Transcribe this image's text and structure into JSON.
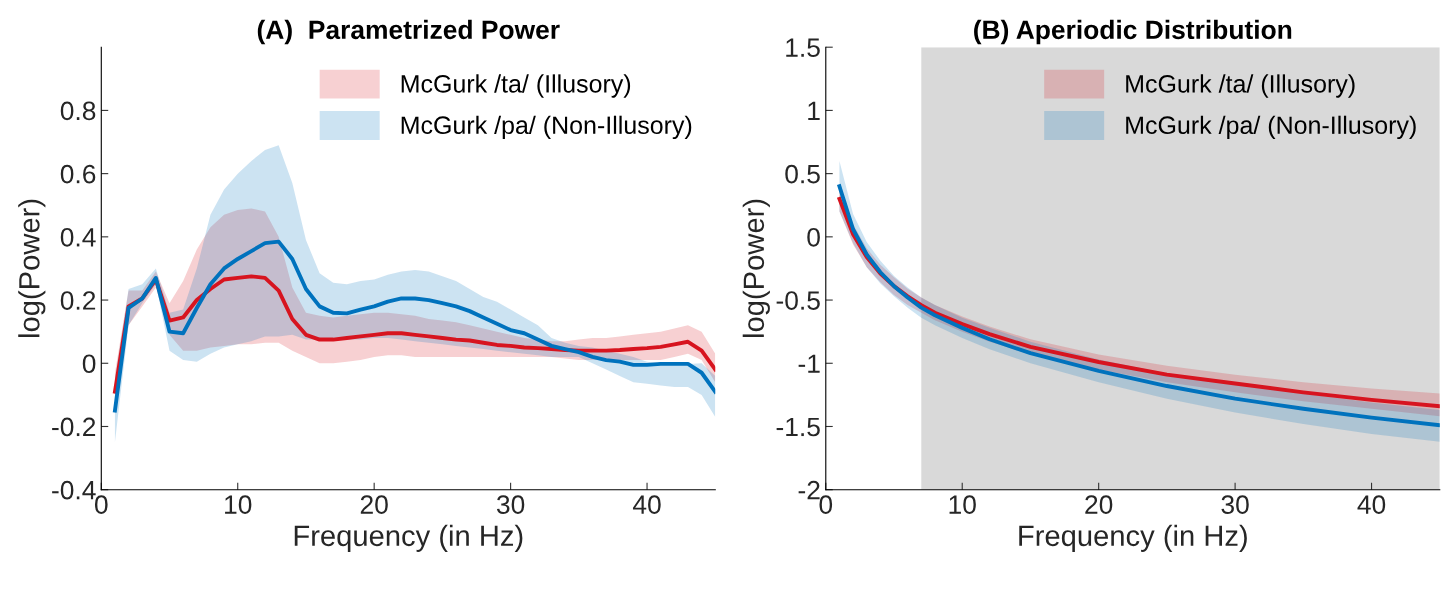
{
  "chart_data": [
    {
      "type": "line",
      "title": "(A)  Parametrized Power",
      "xlabel": "Frequency (in Hz)",
      "ylabel": "log(Power)",
      "x": [
        1,
        2,
        3,
        4,
        5,
        6,
        7,
        8,
        9,
        10,
        11,
        12,
        13,
        14,
        15,
        16,
        17,
        18,
        19,
        20,
        21,
        22,
        23,
        24,
        25,
        26,
        27,
        28,
        29,
        30,
        31,
        32,
        33,
        34,
        35,
        36,
        37,
        38,
        39,
        40,
        41,
        42,
        43,
        44,
        45
      ],
      "xlim": [
        0,
        45
      ],
      "xticks": [
        0,
        10,
        20,
        30,
        40
      ],
      "ylim": [
        -0.4,
        1.0
      ],
      "yticks": [
        -0.4,
        -0.2,
        0,
        0.2,
        0.4,
        0.6,
        0.8
      ],
      "grid": false,
      "legend": "top right",
      "series": [
        {
          "name": "McGurk /ta/ (Illusory)",
          "color": "#d7141f",
          "values": [
            -0.09,
            0.18,
            0.205,
            0.265,
            0.135,
            0.145,
            0.2,
            0.235,
            0.265,
            0.27,
            0.275,
            0.27,
            0.23,
            0.14,
            0.09,
            0.075,
            0.075,
            0.08,
            0.085,
            0.09,
            0.095,
            0.095,
            0.09,
            0.085,
            0.08,
            0.075,
            0.072,
            0.065,
            0.058,
            0.055,
            0.05,
            0.048,
            0.045,
            0.042,
            0.04,
            0.04,
            0.04,
            0.042,
            0.045,
            0.048,
            0.052,
            0.06,
            0.068,
            0.04,
            -0.02
          ],
          "lower": [
            -0.15,
            0.12,
            0.18,
            0.24,
            0.09,
            0.04,
            0.04,
            0.05,
            0.055,
            0.06,
            0.06,
            0.065,
            0.065,
            0.04,
            0.02,
            0.0,
            0.0,
            0.005,
            0.01,
            0.02,
            0.025,
            0.025,
            0.02,
            0.02,
            0.02,
            0.02,
            0.02,
            0.02,
            0.02,
            0.02,
            0.02,
            0.02,
            0.02,
            0.015,
            0.01,
            0.01,
            0.01,
            0.01,
            0.01,
            0.01,
            0.01,
            0.02,
            0.03,
            0.01,
            -0.06
          ],
          "upper": [
            -0.03,
            0.23,
            0.23,
            0.29,
            0.19,
            0.26,
            0.36,
            0.43,
            0.47,
            0.485,
            0.49,
            0.48,
            0.4,
            0.24,
            0.16,
            0.15,
            0.145,
            0.15,
            0.155,
            0.16,
            0.16,
            0.155,
            0.15,
            0.14,
            0.135,
            0.13,
            0.12,
            0.11,
            0.1,
            0.09,
            0.08,
            0.075,
            0.07,
            0.07,
            0.075,
            0.08,
            0.08,
            0.085,
            0.09,
            0.095,
            0.1,
            0.11,
            0.12,
            0.1,
            0.03
          ]
        },
        {
          "name": "McGurk /pa/ (Non-Illusory)",
          "color": "#0072bd",
          "values": [
            -0.15,
            0.175,
            0.205,
            0.27,
            0.1,
            0.095,
            0.175,
            0.25,
            0.3,
            0.33,
            0.355,
            0.38,
            0.385,
            0.33,
            0.235,
            0.18,
            0.16,
            0.158,
            0.17,
            0.18,
            0.195,
            0.205,
            0.205,
            0.2,
            0.19,
            0.18,
            0.165,
            0.145,
            0.125,
            0.105,
            0.095,
            0.075,
            0.055,
            0.045,
            0.035,
            0.02,
            0.01,
            0.005,
            -0.005,
            -0.005,
            -0.002,
            -0.002,
            -0.002,
            -0.03,
            -0.09
          ],
          "lower": [
            -0.25,
            0.12,
            0.19,
            0.25,
            0.04,
            0.01,
            0.005,
            0.03,
            0.05,
            0.06,
            0.07,
            0.085,
            0.085,
            0.09,
            0.075,
            0.075,
            0.08,
            0.075,
            0.075,
            0.08,
            0.08,
            0.075,
            0.07,
            0.065,
            0.06,
            0.055,
            0.05,
            0.045,
            0.04,
            0.035,
            0.03,
            0.025,
            0.02,
            0.02,
            0.02,
            0.0,
            -0.02,
            -0.04,
            -0.06,
            -0.065,
            -0.07,
            -0.075,
            -0.075,
            -0.1,
            -0.17
          ],
          "upper": [
            -0.05,
            0.235,
            0.25,
            0.3,
            0.16,
            0.17,
            0.3,
            0.47,
            0.55,
            0.6,
            0.64,
            0.675,
            0.69,
            0.57,
            0.39,
            0.285,
            0.255,
            0.25,
            0.26,
            0.265,
            0.28,
            0.29,
            0.295,
            0.29,
            0.275,
            0.26,
            0.235,
            0.21,
            0.195,
            0.17,
            0.145,
            0.12,
            0.08,
            0.065,
            0.055,
            0.05,
            0.04,
            0.03,
            0.02,
            0.005,
            0.0,
            -0.002,
            -0.002,
            0.0,
            -0.04
          ]
        }
      ]
    },
    {
      "type": "line",
      "title": "(B) Aperiodic Distribution",
      "xlabel": "Frequency (in Hz)",
      "ylabel": "log(Power)",
      "x": [
        1,
        2,
        3,
        4,
        5,
        6,
        7,
        8,
        10,
        12,
        15,
        20,
        25,
        30,
        35,
        40,
        45
      ],
      "xlim": [
        0,
        45
      ],
      "xticks": [
        0,
        10,
        20,
        30,
        40
      ],
      "ylim": [
        -2,
        1.5
      ],
      "yticks": [
        -2,
        -1.5,
        -1,
        -0.5,
        0,
        0.5,
        1,
        1.5
      ],
      "grid": false,
      "legend": "top right",
      "bands": [
        {
          "axis": "x",
          "from": 7,
          "to": 45,
          "color": "#d9d9d9"
        }
      ],
      "series": [
        {
          "name": "McGurk /ta/ (Illusory)",
          "color": "#d7141f",
          "values": [
            0.3,
            0.02,
            -0.16,
            -0.29,
            -0.39,
            -0.47,
            -0.54,
            -0.6,
            -0.69,
            -0.77,
            -0.87,
            -0.99,
            -1.09,
            -1.16,
            -1.23,
            -1.29,
            -1.34
          ],
          "lower": [
            0.2,
            -0.06,
            -0.24,
            -0.36,
            -0.46,
            -0.54,
            -0.6,
            -0.66,
            -0.75,
            -0.83,
            -0.93,
            -1.05,
            -1.15,
            -1.23,
            -1.3,
            -1.36,
            -1.42
          ],
          "upper": [
            0.4,
            0.1,
            -0.09,
            -0.22,
            -0.32,
            -0.41,
            -0.48,
            -0.54,
            -0.63,
            -0.71,
            -0.81,
            -0.93,
            -1.02,
            -1.09,
            -1.15,
            -1.2,
            -1.24
          ]
        },
        {
          "name": "McGurk /pa/ (Non-Illusory)",
          "color": "#0072bd",
          "values": [
            0.4,
            0.06,
            -0.14,
            -0.28,
            -0.39,
            -0.48,
            -0.56,
            -0.62,
            -0.72,
            -0.81,
            -0.92,
            -1.06,
            -1.18,
            -1.28,
            -1.36,
            -1.43,
            -1.49
          ],
          "lower": [
            0.2,
            -0.05,
            -0.24,
            -0.37,
            -0.47,
            -0.56,
            -0.64,
            -0.7,
            -0.8,
            -0.89,
            -1.0,
            -1.15,
            -1.28,
            -1.39,
            -1.48,
            -1.56,
            -1.62
          ],
          "upper": [
            0.6,
            0.18,
            -0.04,
            -0.19,
            -0.31,
            -0.4,
            -0.48,
            -0.54,
            -0.64,
            -0.72,
            -0.83,
            -0.97,
            -1.08,
            -1.17,
            -1.24,
            -1.31,
            -1.37
          ]
        }
      ]
    }
  ]
}
